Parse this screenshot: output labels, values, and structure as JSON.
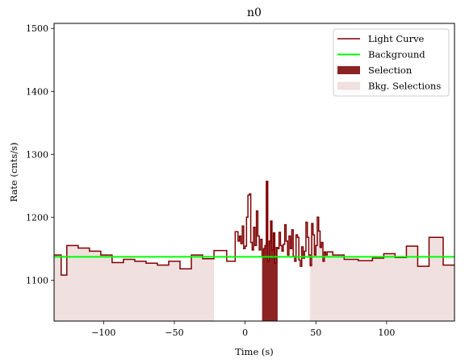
{
  "chart_data": {
    "type": "line",
    "title": "n0",
    "xlabel": "Time (s)",
    "ylabel": "Rate (cnts/s)",
    "xlim": [
      -135,
      148
    ],
    "ylim": [
      1035,
      1508
    ],
    "xticks": [
      -100,
      -50,
      0,
      50,
      100
    ],
    "yticks": [
      1100,
      1200,
      1300,
      1400,
      1500
    ],
    "xtick_labels": [
      "−100",
      "−50",
      "0",
      "50",
      "100"
    ],
    "ytick_labels": [
      "1100",
      "1200",
      "1300",
      "1400",
      "1500"
    ],
    "legend_position": "top-right",
    "grid": false,
    "colors": {
      "light_curve": "#7f0000",
      "background": "#00ff00",
      "selection": "#8b2323",
      "bkg_selection": "#f0e0e0"
    },
    "series": [
      {
        "name": "Light Curve",
        "style": "step",
        "x": [
          -135,
          -130,
          -126,
          -118,
          -110,
          -102,
          -94,
          -86,
          -78,
          -70,
          -62,
          -54,
          -46,
          -38,
          -30,
          -22,
          -13,
          -7,
          -5,
          -4,
          -3,
          -2,
          -1,
          0,
          1,
          2,
          3,
          4,
          5,
          6,
          7,
          8,
          9,
          10,
          11,
          12,
          13,
          14,
          15,
          16,
          17,
          18,
          19,
          20,
          21,
          22,
          23,
          24,
          25,
          26,
          27,
          28,
          29,
          30,
          31,
          32,
          33,
          34,
          35,
          36,
          37,
          38,
          39,
          40,
          41,
          42,
          43,
          44,
          45,
          46,
          47,
          48,
          49,
          50,
          51,
          52,
          53,
          54,
          55,
          56,
          57,
          58,
          62,
          70,
          80,
          90,
          98,
          106,
          114,
          122,
          130,
          140,
          148
        ],
        "values": [
          1140,
          1108,
          1155,
          1151,
          1146,
          1140,
          1128,
          1133,
          1130,
          1127,
          1124,
          1130,
          1118,
          1140,
          1134,
          1147,
          1130,
          1177,
          1162,
          1170,
          1158,
          1186,
          1150,
          1154,
          1200,
          1235,
          1237,
          1160,
          1148,
          1184,
          1155,
          1210,
          1170,
          1148,
          1165,
          1138,
          1150,
          1155,
          1257,
          1130,
          1162,
          1194,
          1148,
          1175,
          1127,
          1152,
          1150,
          1176,
          1155,
          1146,
          1157,
          1188,
          1162,
          1140,
          1170,
          1150,
          1180,
          1138,
          1130,
          1172,
          1168,
          1132,
          1122,
          1153,
          1135,
          1146,
          1192,
          1168,
          1140,
          1123,
          1190,
          1172,
          1140,
          1155,
          1200,
          1178,
          1152,
          1160,
          1130,
          1145,
          1140,
          1145,
          1140,
          1133,
          1131,
          1135,
          1142,
          1136,
          1154,
          1122,
          1168,
          1124,
          1124
        ]
      },
      {
        "name": "Background",
        "style": "line",
        "x": [
          -135,
          148
        ],
        "values": [
          1137,
          1137
        ]
      }
    ],
    "selection": {
      "name": "Selection",
      "xmin": 12,
      "xmax": 23
    },
    "bkg_selections": [
      {
        "name": "Bkg. Selections",
        "xmin": -135,
        "xmax": -22
      },
      {
        "xmin": 46,
        "xmax": 148
      }
    ]
  }
}
